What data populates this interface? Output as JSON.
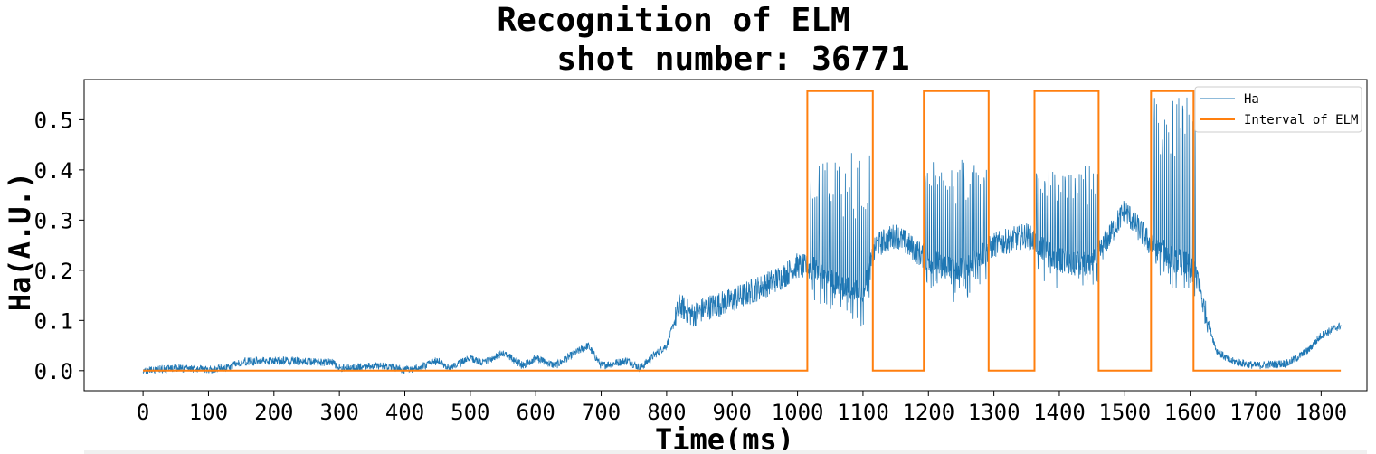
{
  "chart_data": {
    "type": "line",
    "title_line1": "Recognition of ELM",
    "title_line2": "shot number: 36771",
    "xlabel": "Time(ms)",
    "ylabel": "Ha(A.U.)",
    "xlim": [
      -90,
      1870
    ],
    "ylim": [
      -0.04,
      0.58
    ],
    "xticks": [
      0,
      100,
      200,
      300,
      400,
      500,
      600,
      700,
      800,
      900,
      1000,
      1100,
      1200,
      1300,
      1400,
      1500,
      1600,
      1700,
      1800
    ],
    "yticks": [
      0.0,
      0.1,
      0.2,
      0.3,
      0.4,
      0.5
    ],
    "ytick_labels": [
      "0.0",
      "0.1",
      "0.2",
      "0.3",
      "0.4",
      "0.5"
    ],
    "grid": false,
    "legend_position": "upper right",
    "series": [
      {
        "name": "Ha",
        "color": "#1f77b4",
        "linewidth": 0.8,
        "baseline": [
          [
            0,
            0.0
          ],
          [
            50,
            0.005
          ],
          [
            100,
            0.002
          ],
          [
            130,
            0.006
          ],
          [
            150,
            0.018
          ],
          [
            200,
            0.02
          ],
          [
            250,
            0.018
          ],
          [
            290,
            0.016
          ],
          [
            300,
            0.005
          ],
          [
            350,
            0.01
          ],
          [
            380,
            0.008
          ],
          [
            400,
            0.0
          ],
          [
            430,
            0.01
          ],
          [
            450,
            0.02
          ],
          [
            470,
            0.005
          ],
          [
            500,
            0.025
          ],
          [
            520,
            0.015
          ],
          [
            550,
            0.035
          ],
          [
            580,
            0.01
          ],
          [
            600,
            0.025
          ],
          [
            630,
            0.01
          ],
          [
            660,
            0.035
          ],
          [
            680,
            0.05
          ],
          [
            700,
            0.01
          ],
          [
            740,
            0.02
          ],
          [
            760,
            0.005
          ],
          [
            780,
            0.03
          ],
          [
            800,
            0.05
          ],
          [
            820,
            0.13
          ],
          [
            840,
            0.11
          ],
          [
            860,
            0.125
          ],
          [
            900,
            0.14
          ],
          [
            950,
            0.17
          ],
          [
            980,
            0.19
          ],
          [
            1000,
            0.21
          ],
          [
            1030,
            0.2
          ],
          [
            1060,
            0.17
          ],
          [
            1100,
            0.15
          ],
          [
            1120,
            0.25
          ],
          [
            1150,
            0.27
          ],
          [
            1200,
            0.22
          ],
          [
            1250,
            0.2
          ],
          [
            1300,
            0.25
          ],
          [
            1350,
            0.27
          ],
          [
            1400,
            0.22
          ],
          [
            1450,
            0.21
          ],
          [
            1500,
            0.32
          ],
          [
            1540,
            0.25
          ],
          [
            1580,
            0.22
          ],
          [
            1610,
            0.2
          ],
          [
            1620,
            0.13
          ],
          [
            1640,
            0.04
          ],
          [
            1660,
            0.02
          ],
          [
            1700,
            0.01
          ],
          [
            1750,
            0.015
          ],
          [
            1780,
            0.04
          ],
          [
            1800,
            0.07
          ],
          [
            1830,
            0.09
          ]
        ],
        "elm_bursts": [
          {
            "start": 1020,
            "end": 1110,
            "peak": 0.44
          },
          {
            "start": 1195,
            "end": 1290,
            "peak": 0.42
          },
          {
            "start": 1365,
            "end": 1460,
            "peak": 0.41
          },
          {
            "start": 1545,
            "end": 1610,
            "peak": 0.55
          }
        ],
        "noise_amplitude": 0.008
      },
      {
        "name": "Interval of ELM",
        "color": "#ff7f0e",
        "linewidth": 2,
        "points": [
          [
            0,
            0.0
          ],
          [
            1015,
            0.0
          ],
          [
            1015,
            0.557
          ],
          [
            1115,
            0.557
          ],
          [
            1115,
            0.0
          ],
          [
            1193,
            0.0
          ],
          [
            1193,
            0.557
          ],
          [
            1292,
            0.557
          ],
          [
            1292,
            0.0
          ],
          [
            1362,
            0.0
          ],
          [
            1362,
            0.557
          ],
          [
            1460,
            0.557
          ],
          [
            1460,
            0.0
          ],
          [
            1540,
            0.0
          ],
          [
            1540,
            0.557
          ],
          [
            1605,
            0.557
          ],
          [
            1605,
            0.0
          ],
          [
            1830,
            0.0
          ]
        ]
      }
    ]
  }
}
